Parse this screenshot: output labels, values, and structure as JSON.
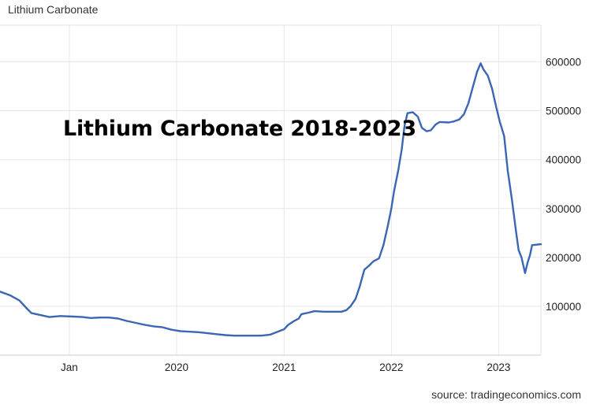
{
  "chart_data": {
    "type": "line",
    "title": "Lithium Carbonate",
    "overlay_title": "Lithium Carbonate 2018-2023",
    "source": "source: tradingeconomics.com",
    "line_color": "#3a66b5",
    "x_ticks": [
      {
        "label": "Jan",
        "date": "2019-01-01"
      },
      {
        "label": "2020",
        "date": "2020-01-01"
      },
      {
        "label": "2021",
        "date": "2021-01-01"
      },
      {
        "label": "2022",
        "date": "2022-01-01"
      },
      {
        "label": "2023",
        "date": "2023-01-01"
      }
    ],
    "y_ticks": [
      100000,
      200000,
      300000,
      400000,
      500000,
      600000
    ],
    "y_tick_labels": [
      "100000",
      "200000",
      "300000",
      "400000",
      "500000",
      "600000"
    ],
    "ylim": [
      0,
      675000
    ],
    "xlim": [
      "2018-05-10",
      "2023-05-25"
    ],
    "grid": true,
    "series": [
      {
        "values": [
          [
            "2018-05-10",
            130000
          ],
          [
            "2018-06-15",
            122000
          ],
          [
            "2018-07-15",
            112000
          ],
          [
            "2018-08-10",
            95000
          ],
          [
            "2018-08-25",
            86000
          ],
          [
            "2018-09-25",
            82000
          ],
          [
            "2018-10-25",
            78000
          ],
          [
            "2018-12-01",
            80000
          ],
          [
            "2019-01-15",
            79000
          ],
          [
            "2019-02-15",
            78000
          ],
          [
            "2019-03-15",
            76000
          ],
          [
            "2019-04-15",
            77000
          ],
          [
            "2019-05-15",
            77000
          ],
          [
            "2019-06-15",
            75000
          ],
          [
            "2019-07-15",
            70000
          ],
          [
            "2019-08-15",
            66000
          ],
          [
            "2019-09-15",
            62000
          ],
          [
            "2019-10-15",
            59000
          ],
          [
            "2019-11-15",
            57000
          ],
          [
            "2019-12-15",
            52000
          ],
          [
            "2020-01-15",
            49000
          ],
          [
            "2020-02-15",
            48000
          ],
          [
            "2020-03-15",
            47000
          ],
          [
            "2020-04-15",
            45000
          ],
          [
            "2020-05-15",
            43000
          ],
          [
            "2020-06-15",
            41000
          ],
          [
            "2020-07-15",
            40000
          ],
          [
            "2020-08-15",
            40000
          ],
          [
            "2020-09-15",
            40000
          ],
          [
            "2020-10-15",
            40000
          ],
          [
            "2020-11-15",
            42000
          ],
          [
            "2020-12-10",
            48000
          ],
          [
            "2021-01-01",
            53000
          ],
          [
            "2021-01-15",
            62000
          ],
          [
            "2021-02-01",
            69000
          ],
          [
            "2021-02-20",
            75000
          ],
          [
            "2021-03-01",
            84000
          ],
          [
            "2021-03-25",
            87000
          ],
          [
            "2021-04-15",
            90000
          ],
          [
            "2021-05-15",
            89000
          ],
          [
            "2021-06-15",
            89000
          ],
          [
            "2021-07-15",
            89000
          ],
          [
            "2021-08-01",
            92000
          ],
          [
            "2021-08-15",
            100000
          ],
          [
            "2021-09-01",
            115000
          ],
          [
            "2021-09-15",
            140000
          ],
          [
            "2021-10-01",
            175000
          ],
          [
            "2021-10-15",
            182000
          ],
          [
            "2021-11-01",
            192000
          ],
          [
            "2021-11-20",
            198000
          ],
          [
            "2021-12-05",
            225000
          ],
          [
            "2021-12-20",
            265000
          ],
          [
            "2022-01-01",
            300000
          ],
          [
            "2022-01-10",
            335000
          ],
          [
            "2022-01-25",
            380000
          ],
          [
            "2022-02-05",
            420000
          ],
          [
            "2022-02-15",
            470000
          ],
          [
            "2022-02-25",
            495000
          ],
          [
            "2022-03-15",
            497000
          ],
          [
            "2022-04-01",
            488000
          ],
          [
            "2022-04-15",
            465000
          ],
          [
            "2022-05-01",
            458000
          ],
          [
            "2022-05-15",
            460000
          ],
          [
            "2022-06-01",
            472000
          ],
          [
            "2022-06-15",
            477000
          ],
          [
            "2022-07-15",
            476000
          ],
          [
            "2022-08-01",
            478000
          ],
          [
            "2022-08-20",
            482000
          ],
          [
            "2022-09-05",
            493000
          ],
          [
            "2022-09-20",
            515000
          ],
          [
            "2022-10-05",
            548000
          ],
          [
            "2022-10-20",
            580000
          ],
          [
            "2022-11-01",
            597000
          ],
          [
            "2022-11-10",
            585000
          ],
          [
            "2022-11-25",
            572000
          ],
          [
            "2022-12-10",
            545000
          ],
          [
            "2022-12-25",
            505000
          ],
          [
            "2023-01-05",
            478000
          ],
          [
            "2023-01-20",
            448000
          ],
          [
            "2023-02-01",
            378000
          ],
          [
            "2023-02-15",
            320000
          ],
          [
            "2023-03-01",
            255000
          ],
          [
            "2023-03-10",
            215000
          ],
          [
            "2023-03-20",
            200000
          ],
          [
            "2023-04-01",
            168000
          ],
          [
            "2023-04-10",
            190000
          ],
          [
            "2023-04-18",
            205000
          ],
          [
            "2023-04-25",
            225000
          ],
          [
            "2023-05-25",
            227000
          ]
        ]
      }
    ]
  }
}
